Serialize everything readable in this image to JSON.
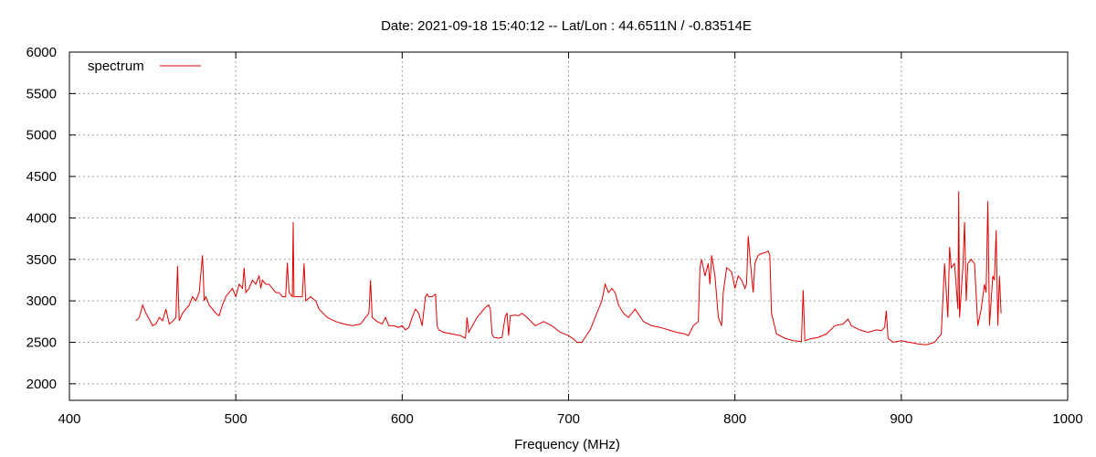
{
  "chart_data": {
    "type": "line",
    "title": "Date: 2021-09-18 15:40:12  --  Lat/Lon : 44.6511N / -0.83514E",
    "xlabel": "Frequency (MHz)",
    "ylabel": "",
    "xlim": [
      400,
      1000
    ],
    "ylim": [
      1800,
      6000
    ],
    "x_ticks": [
      400,
      500,
      600,
      700,
      800,
      900,
      1000
    ],
    "y_ticks": [
      2000,
      2500,
      3000,
      3500,
      4000,
      4500,
      5000,
      5500,
      6000
    ],
    "grid": true,
    "legend_position": "top-left",
    "series": [
      {
        "name": "spectrum",
        "color": "#e00000",
        "x": [
          440,
          442,
          444,
          446,
          448,
          450,
          452,
          454,
          456,
          458,
          460,
          462,
          464,
          465,
          466,
          468,
          470,
          472,
          474,
          476,
          478,
          480,
          481,
          482,
          484,
          486,
          488,
          490,
          492,
          494,
          496,
          498,
          500,
          502,
          504,
          505,
          506,
          508,
          510,
          512,
          514,
          515,
          516,
          518,
          520,
          522,
          524,
          526,
          528,
          530,
          531,
          532,
          534,
          534.5,
          535,
          537,
          540,
          541,
          542,
          545,
          548,
          550,
          555,
          560,
          565,
          570,
          575,
          578,
          580,
          581,
          582,
          585,
          588,
          590,
          592,
          595,
          598,
          600,
          602,
          604,
          606,
          608,
          610,
          612,
          614,
          615,
          616,
          618,
          620,
          621,
          622,
          625,
          630,
          635,
          638,
          639,
          640,
          645,
          650,
          652,
          653,
          654,
          655,
          658,
          660,
          662,
          663,
          664,
          665,
          668,
          670,
          672,
          675,
          680,
          685,
          690,
          695,
          700,
          703,
          705,
          708,
          710,
          713,
          716,
          718,
          720,
          722,
          724,
          726,
          728,
          730,
          733,
          736,
          740,
          745,
          750,
          755,
          760,
          765,
          770,
          772,
          775,
          778,
          779,
          780,
          782,
          784,
          785,
          786,
          788,
          790,
          792,
          793,
          795,
          798,
          800,
          802,
          804,
          806,
          807,
          808,
          810,
          811,
          812,
          814,
          816,
          818,
          820,
          821,
          822,
          825,
          830,
          835,
          840,
          841,
          842,
          845,
          850,
          855,
          860,
          865,
          868,
          870,
          872,
          875,
          880,
          885,
          888,
          890,
          891,
          892,
          895,
          900,
          905,
          910,
          915,
          920,
          924,
          926,
          928,
          929,
          930,
          932,
          934,
          934.5,
          935,
          937,
          938,
          939,
          940,
          942,
          944,
          946,
          948,
          950,
          951,
          952,
          953,
          955,
          956,
          957,
          958,
          959,
          960
        ],
        "values": [
          2760,
          2800,
          2950,
          2850,
          2780,
          2700,
          2720,
          2800,
          2760,
          2900,
          2720,
          2750,
          2800,
          3420,
          2760,
          2850,
          2900,
          2950,
          3050,
          3000,
          3100,
          3550,
          3000,
          3050,
          2950,
          2900,
          2850,
          2820,
          2950,
          3050,
          3100,
          3150,
          3050,
          3200,
          3150,
          3400,
          3100,
          3150,
          3250,
          3200,
          3300,
          3150,
          3250,
          3200,
          3200,
          3150,
          3100,
          3100,
          3050,
          3050,
          3460,
          3100,
          3050,
          3950,
          3050,
          3050,
          3050,
          3450,
          3000,
          3050,
          3000,
          2900,
          2800,
          2750,
          2720,
          2700,
          2720,
          2800,
          2850,
          3250,
          2800,
          2750,
          2720,
          2800,
          2700,
          2700,
          2680,
          2700,
          2650,
          2680,
          2800,
          2900,
          2850,
          2700,
          3050,
          3080,
          3050,
          3050,
          3080,
          2700,
          2650,
          2620,
          2600,
          2580,
          2550,
          2800,
          2620,
          2800,
          2920,
          2950,
          2900,
          2600,
          2560,
          2550,
          2560,
          2820,
          2850,
          2580,
          2820,
          2830,
          2820,
          2850,
          2800,
          2700,
          2750,
          2700,
          2620,
          2580,
          2540,
          2500,
          2500,
          2560,
          2650,
          2800,
          2900,
          3000,
          3200,
          3100,
          3150,
          3100,
          2950,
          2850,
          2800,
          2900,
          2750,
          2700,
          2680,
          2650,
          2620,
          2600,
          2580,
          2700,
          2750,
          3400,
          3500,
          3300,
          3450,
          3200,
          3550,
          3300,
          2800,
          2700,
          3100,
          3400,
          3350,
          3150,
          3300,
          3250,
          3150,
          3200,
          3780,
          3300,
          3100,
          3450,
          3550,
          3570,
          3580,
          3600,
          3550,
          2850,
          2600,
          2550,
          2520,
          2510,
          3130,
          2520,
          2540,
          2560,
          2600,
          2700,
          2720,
          2780,
          2700,
          2680,
          2650,
          2620,
          2650,
          2640,
          2680,
          2880,
          2550,
          2500,
          2520,
          2500,
          2480,
          2470,
          2500,
          2600,
          3450,
          2800,
          3650,
          3400,
          3450,
          2900,
          4320,
          2800,
          3400,
          3950,
          3000,
          3450,
          3500,
          3450,
          2700,
          2900,
          3200,
          3100,
          4200,
          2700,
          3300,
          3250,
          3850,
          2700,
          3300,
          2850
        ]
      }
    ]
  }
}
